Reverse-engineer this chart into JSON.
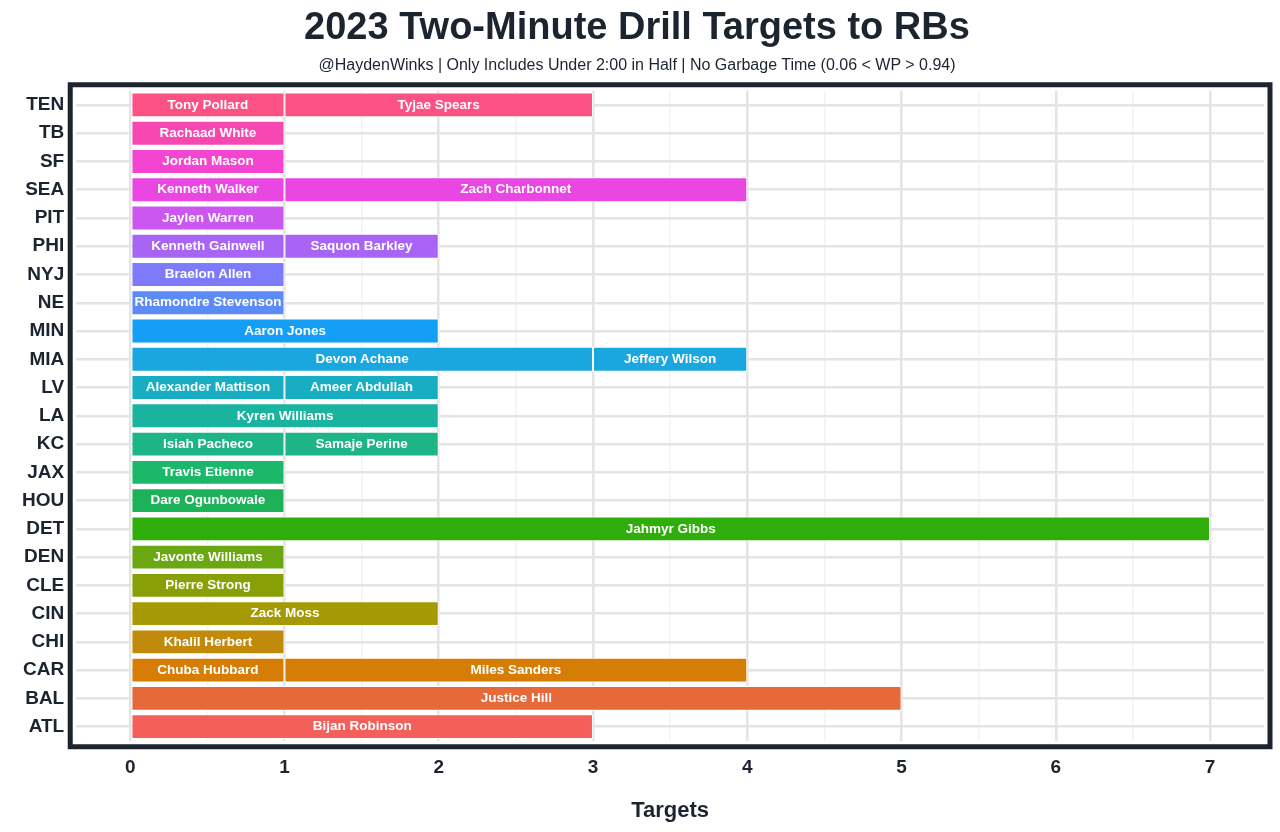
{
  "chart_data": {
    "type": "bar",
    "orientation": "horizontal",
    "stacked": true,
    "title": "2023 Two-Minute Drill Targets to RBs",
    "subtitle": "@HaydenWinks | Only Includes Under 2:00 in Half | No Garbage Time (0.06 < WP > 0.94)",
    "xlabel": "Targets",
    "categories": [
      "TEN",
      "TB",
      "SF",
      "SEA",
      "PIT",
      "PHI",
      "NYJ",
      "NE",
      "MIN",
      "MIA",
      "LV",
      "LA",
      "KC",
      "JAX",
      "HOU",
      "DET",
      "DEN",
      "CLE",
      "CIN",
      "CHI",
      "CAR",
      "BAL",
      "ATL"
    ],
    "series": [
      {
        "colors": [
          "#fb5185",
          "#f748b2",
          "#f345cf",
          "#e946e2",
          "#cc56f0",
          "#a865f5",
          "#7d7bfb",
          "#5c8bf7",
          "#149ef5",
          "#1aa6df",
          "#17aec3",
          "#19b3a0",
          "#1db585",
          "#1cb86a",
          "#1db25a",
          "#2fae0b",
          "#6aa711",
          "#889f06",
          "#a59a03",
          "#c28a0a",
          "#d57d05",
          "#e6693a",
          "#f35f5a"
        ],
        "values": [
          1,
          1,
          1,
          1,
          1,
          1,
          1,
          1,
          2,
          3,
          1,
          2,
          1,
          1,
          1,
          7,
          1,
          1,
          2,
          1,
          1,
          5,
          3
        ],
        "value_labels": [
          "Tony Pollard",
          "Rachaad White",
          "Jordan Mason",
          "Kenneth Walker",
          "Jaylen Warren",
          "Kenneth Gainwell",
          "Braelon Allen",
          "Rhamondre Stevenson",
          "Aaron Jones",
          "Devon Achane",
          "Alexander Mattison",
          "Kyren Williams",
          "Isiah Pacheco",
          "Travis Etienne",
          "Dare Ogunbowale",
          "Jahmyr Gibbs",
          "Javonte Williams",
          "Pierre Strong",
          "Zack Moss",
          "Khalil Herbert",
          "Chuba Hubbard",
          "Justice Hill",
          "Bijan Robinson"
        ]
      },
      {
        "colors": [
          "#fb5185",
          "#f748b2",
          "#f345cf",
          "#e946e2",
          "#cc56f0",
          "#a865f5",
          "#7d7bfb",
          "#5c8bf7",
          "#149ef5",
          "#1aa6df",
          "#17aec3",
          "#19b3a0",
          "#1db585",
          "#1cb86a",
          "#1db25a",
          "#2fae0b",
          "#6aa711",
          "#889f06",
          "#a59a03",
          "#c28a0a",
          "#d57d05",
          "#e6693a",
          "#f35f5a"
        ],
        "values": [
          2,
          null,
          null,
          3,
          null,
          1,
          null,
          null,
          null,
          1,
          1,
          null,
          1,
          null,
          null,
          null,
          null,
          null,
          null,
          null,
          3,
          null,
          null
        ],
        "value_labels": [
          "Tyjae Spears",
          null,
          null,
          "Zach Charbonnet",
          null,
          "Saquon Barkley",
          null,
          null,
          null,
          "Jeffery Wilson",
          "Ameer Abdullah",
          null,
          "Samaje Perine",
          null,
          null,
          null,
          null,
          null,
          null,
          null,
          "Miles Sanders",
          null,
          null
        ]
      }
    ],
    "xlim": [
      -0.35,
      7.35
    ],
    "xticks": [
      0,
      1,
      2,
      3,
      4,
      5,
      6,
      7
    ],
    "grid": true,
    "legend": false
  }
}
